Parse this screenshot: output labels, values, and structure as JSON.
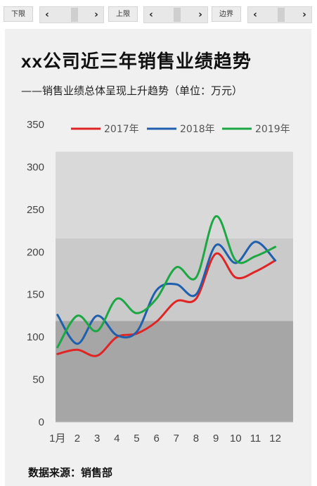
{
  "controls": {
    "lower": {
      "label": "下限"
    },
    "upper": {
      "label": "上限"
    },
    "border": {
      "label": "边界"
    }
  },
  "title": "xx公司近三年销售业绩趋势",
  "subtitle": "——销售业绩总体呈现上升趋势（单位：万元）",
  "source": "数据来源：销售部",
  "chart_data": {
    "type": "line",
    "smooth": true,
    "categories": [
      "1月",
      "2",
      "3",
      "4",
      "5",
      "6",
      "7",
      "8",
      "9",
      "10",
      "11",
      "12"
    ],
    "ylim": [
      0,
      350
    ],
    "yticks": [
      0,
      50,
      100,
      150,
      200,
      250,
      300,
      350
    ],
    "legend_position": "top",
    "bands": [
      {
        "from": 0,
        "to": 119,
        "color": "#a6a6a6"
      },
      {
        "from": 119,
        "to": 216,
        "color": "#cacaca"
      },
      {
        "from": 216,
        "to": 318,
        "color": "#d9d9d9"
      }
    ],
    "series": [
      {
        "name": "2017年",
        "color": "#e02424",
        "values": [
          80,
          85,
          78,
          100,
          104,
          118,
          142,
          145,
          198,
          170,
          177,
          190
        ]
      },
      {
        "name": "2018年",
        "color": "#1f5fad",
        "values": [
          126,
          92,
          125,
          102,
          106,
          155,
          162,
          150,
          208,
          187,
          212,
          190
        ]
      },
      {
        "name": "2019年",
        "color": "#1da744",
        "values": [
          88,
          125,
          107,
          145,
          128,
          145,
          182,
          170,
          242,
          190,
          195,
          206
        ]
      }
    ]
  }
}
